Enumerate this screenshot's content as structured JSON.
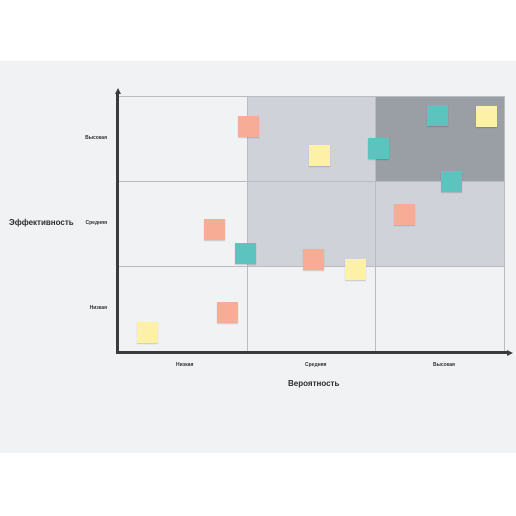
{
  "axes": {
    "x_label": "Вероятность",
    "y_label": "Эффективность",
    "x_ticks": [
      "Низкая",
      "Средняя",
      "Высокая"
    ],
    "y_ticks": [
      "Высокая",
      "Средняя",
      "Низкая"
    ]
  },
  "colors": {
    "board": "#f1f2f4",
    "zone_light": "#cfd3d9",
    "zone_dark": "#9a9ea5",
    "axis": "#3a3b3f",
    "note_orange": "#f7ad95",
    "note_yellow": "#fdf1a8",
    "note_teal": "#5cc3bf"
  },
  "notes": [
    {
      "color": "orange",
      "col": "low",
      "row": "high"
    },
    {
      "color": "yellow",
      "col": "medium",
      "row": "high"
    },
    {
      "color": "teal",
      "col": "high",
      "row": "high"
    },
    {
      "color": "teal",
      "col": "high",
      "row": "high"
    },
    {
      "color": "yellow",
      "col": "high",
      "row": "high"
    },
    {
      "color": "teal",
      "col": "high",
      "row": "medium"
    },
    {
      "color": "orange",
      "col": "low",
      "row": "medium"
    },
    {
      "color": "teal",
      "col": "low",
      "row": "medium"
    },
    {
      "color": "orange",
      "col": "medium",
      "row": "medium"
    },
    {
      "color": "yellow",
      "col": "medium",
      "row": "medium"
    },
    {
      "color": "orange",
      "col": "high",
      "row": "medium"
    },
    {
      "color": "orange",
      "col": "low",
      "row": "low"
    },
    {
      "color": "yellow",
      "col": "low",
      "row": "low"
    }
  ]
}
